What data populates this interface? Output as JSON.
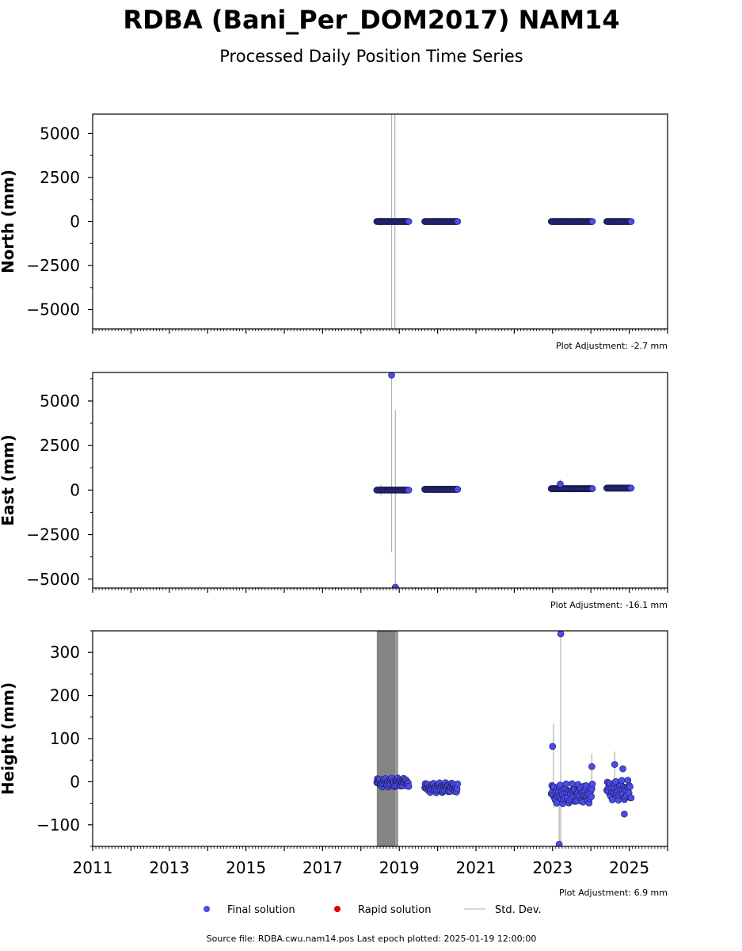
{
  "title": "RDBA (Bani_Per_DOM2017) NAM14",
  "subtitle": "Processed Daily Position Time Series",
  "legend": {
    "final": "Final solution",
    "rapid": "Rapid solution",
    "std": "Std. Dev.",
    "colors": {
      "final": "#4b4bef",
      "rapid": "#e00000",
      "std": "#cccccc"
    }
  },
  "footer": "Source file: RDBA.cwu.nam14.pos  Last epoch plotted: 2025-01-19 12:00:00",
  "chart_data": [
    {
      "type": "scatter",
      "ylabel": "North (mm)",
      "adjustment": "Plot Adjustment: -2.7 mm",
      "xlim": [
        "2011-01-01",
        "2026-01-01"
      ],
      "ylim": [
        -6100,
        6100
      ],
      "yticks": [
        5000,
        2500,
        0,
        -2500,
        -5000
      ],
      "ytick_labels": [
        "5000",
        "2500",
        "0",
        "−2500",
        "−5000"
      ],
      "segments": [
        {
          "start": "2018-06-01",
          "end": "2019-04-01",
          "y": 0
        },
        {
          "start": "2019-09-01",
          "end": "2020-07-10",
          "y": 0
        },
        {
          "start": "2022-12-20",
          "end": "2024-01-15",
          "y": 0
        },
        {
          "start": "2024-06-01",
          "end": "2025-01-19",
          "y": 0
        }
      ],
      "outliers": [],
      "errorbars": [
        {
          "date": "2018-10-20",
          "low": -6100,
          "high": 6100
        },
        {
          "date": "2018-11-20",
          "low": -6100,
          "high": 6100
        },
        {
          "date": "2018-07-10",
          "low": -250,
          "high": 250
        }
      ]
    },
    {
      "type": "scatter",
      "ylabel": "East (mm)",
      "adjustment": "Plot Adjustment: -16.1 mm",
      "xlim": [
        "2011-01-01",
        "2026-01-01"
      ],
      "ylim": [
        -5500,
        6600
      ],
      "yticks": [
        5000,
        2500,
        0,
        -2500,
        -5000
      ],
      "ytick_labels": [
        "5000",
        "2500",
        "0",
        "−2500",
        "−5000"
      ],
      "segments": [
        {
          "start": "2018-06-01",
          "end": "2019-04-01",
          "y": 0
        },
        {
          "start": "2019-09-01",
          "end": "2020-07-10",
          "y": 40
        },
        {
          "start": "2022-12-20",
          "end": "2024-01-15",
          "y": 80
        },
        {
          "start": "2024-06-01",
          "end": "2025-01-19",
          "y": 110
        }
      ],
      "outliers": [
        {
          "date": "2018-10-20",
          "y": 6450
        },
        {
          "date": "2018-11-25",
          "y": -5450
        },
        {
          "date": "2023-03-15",
          "y": 330
        }
      ],
      "errorbars": [
        {
          "date": "2018-10-20",
          "low": -3500,
          "high": 6500
        },
        {
          "date": "2018-11-25",
          "low": -5500,
          "high": 4500
        },
        {
          "date": "2018-07-10",
          "low": -300,
          "high": 300
        },
        {
          "date": "2023-03-15",
          "low": -100,
          "high": 600
        }
      ]
    },
    {
      "type": "scatter",
      "ylabel": "Height (mm)",
      "adjustment": "Plot Adjustment: 6.9 mm",
      "xlim": [
        "2011-01-01",
        "2026-01-01"
      ],
      "ylim": [
        -150,
        350
      ],
      "yticks": [
        300,
        200,
        100,
        0,
        -100
      ],
      "ytick_labels": [
        "300",
        "200",
        "100",
        "0",
        "−100"
      ],
      "xtick_labels": [
        "2011",
        "2013",
        "2015",
        "2017",
        "2019",
        "2021",
        "2023",
        "2025"
      ],
      "segments": [
        {
          "start": "2018-06-01",
          "end": "2019-04-01",
          "y": -2,
          "spread": 22
        },
        {
          "start": "2019-09-01",
          "end": "2020-07-10",
          "y": -14,
          "spread": 24
        },
        {
          "start": "2022-12-20",
          "end": "2024-01-15",
          "y": -28,
          "spread": 48
        },
        {
          "start": "2024-06-01",
          "end": "2025-01-19",
          "y": -20,
          "spread": 48
        }
      ],
      "outliers": [
        {
          "date": "2023-01-01",
          "y": 82
        },
        {
          "date": "2023-03-20",
          "y": 343
        },
        {
          "date": "2023-03-05",
          "y": -145
        },
        {
          "date": "2024-01-10",
          "y": 35
        },
        {
          "date": "2024-08-15",
          "y": 40
        },
        {
          "date": "2024-11-01",
          "y": 30
        },
        {
          "date": "2024-11-15",
          "y": -75
        }
      ],
      "errorband": {
        "start": "2018-06-01",
        "end": "2018-12-20",
        "low": -150,
        "high": 350
      },
      "errorbars": [
        {
          "date": "2023-01-10",
          "low": -60,
          "high": 135
        },
        {
          "date": "2023-03-20",
          "low": -150,
          "high": 350
        },
        {
          "date": "2023-03-05",
          "low": -150,
          "high": 0
        },
        {
          "date": "2024-01-10",
          "low": 0,
          "high": 65
        },
        {
          "date": "2024-08-15",
          "low": 0,
          "high": 70
        },
        {
          "date": "2018-12-01",
          "low": -150,
          "high": 350
        }
      ]
    }
  ]
}
